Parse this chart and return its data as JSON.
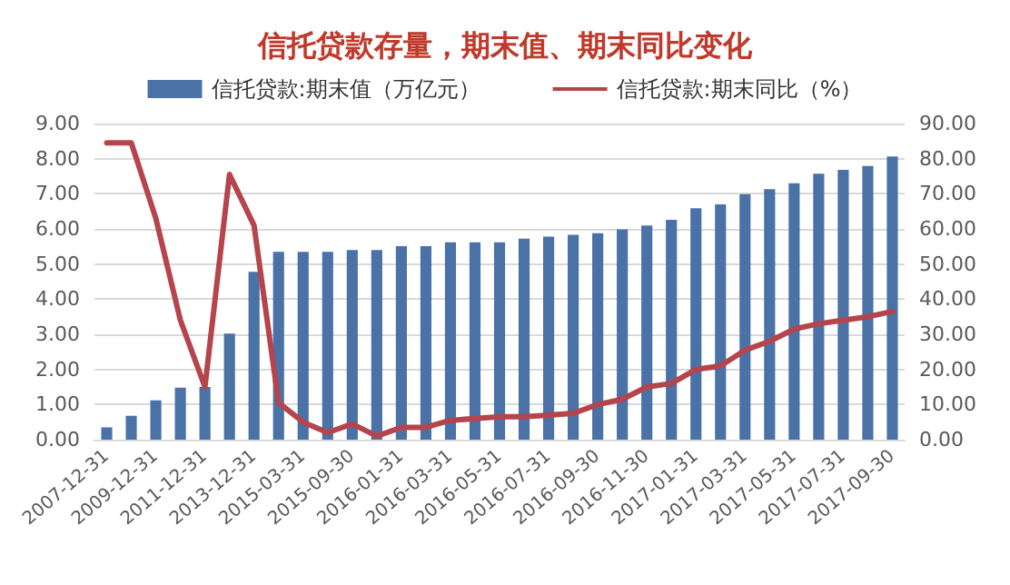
{
  "chart_data": {
    "type": "bar",
    "title": "信托贷款存量，期末值、期末同比变化",
    "categories": [
      "2007-12-31",
      null,
      "2009-12-31",
      null,
      "2011-12-31",
      null,
      "2013-12-31",
      null,
      "2015-03-31",
      null,
      "2015-09-30",
      null,
      "2016-01-31",
      null,
      "2016-03-31",
      null,
      "2016-05-31",
      null,
      "2016-07-31",
      null,
      "2016-09-30",
      null,
      "2016-11-30",
      null,
      "2017-01-31",
      null,
      "2017-03-31",
      null,
      "2017-05-31",
      null,
      "2017-07-31",
      null,
      "2017-09-30"
    ],
    "series": [
      {
        "name": "信托贷款:期末值（万亿元）",
        "color": "#4a72a6",
        "values": [
          0.35,
          0.68,
          1.12,
          1.48,
          1.5,
          3.02,
          4.78,
          5.35,
          5.35,
          5.35,
          5.4,
          5.4,
          5.51,
          5.51,
          5.62,
          5.62,
          5.62,
          5.72,
          5.78,
          5.83,
          5.88,
          5.99,
          6.1,
          6.26,
          6.59,
          6.7,
          6.99,
          7.13,
          7.3,
          7.57,
          7.68,
          7.79,
          8.06
        ]
      },
      {
        "name": "信托贷款:期末同比（%）",
        "type": "line",
        "axis": "y2",
        "color": "#b5444c",
        "values": [
          84.5,
          84.5,
          63,
          34,
          15,
          75.5,
          61,
          10.5,
          5,
          2,
          4.5,
          1,
          3.5,
          3.5,
          5.5,
          6,
          6.5,
          6.5,
          7,
          7.5,
          10,
          11.5,
          15,
          16,
          20,
          21,
          25.5,
          28,
          31.5,
          33,
          34,
          35,
          36.5
        ]
      }
    ],
    "ylim": [
      0,
      9
    ],
    "yticks": [
      {
        "value": 0,
        "label": "0.00"
      },
      {
        "value": 1,
        "label": "1.00"
      },
      {
        "value": 2,
        "label": "2.00"
      },
      {
        "value": 3,
        "label": "3.00"
      },
      {
        "value": 4,
        "label": "4.00"
      },
      {
        "value": 5,
        "label": "5.00"
      },
      {
        "value": 6,
        "label": "6.00"
      },
      {
        "value": 7,
        "label": "7.00"
      },
      {
        "value": 8,
        "label": "8.00"
      },
      {
        "value": 9,
        "label": "9.00"
      }
    ],
    "y2lim": [
      0,
      90
    ],
    "y2ticks": [
      {
        "value": 0,
        "label": "0.00"
      },
      {
        "value": 10,
        "label": "10.00"
      },
      {
        "value": 20,
        "label": "20.00"
      },
      {
        "value": 30,
        "label": "30.00"
      },
      {
        "value": 40,
        "label": "40.00"
      },
      {
        "value": 50,
        "label": "50.00"
      },
      {
        "value": 60,
        "label": "60.00"
      },
      {
        "value": 70,
        "label": "70.00"
      },
      {
        "value": 80,
        "label": "80.00"
      },
      {
        "value": 90,
        "label": "90.00"
      }
    ],
    "grid": "y",
    "legend": "top",
    "marker": "none",
    "line_style": "solid"
  }
}
